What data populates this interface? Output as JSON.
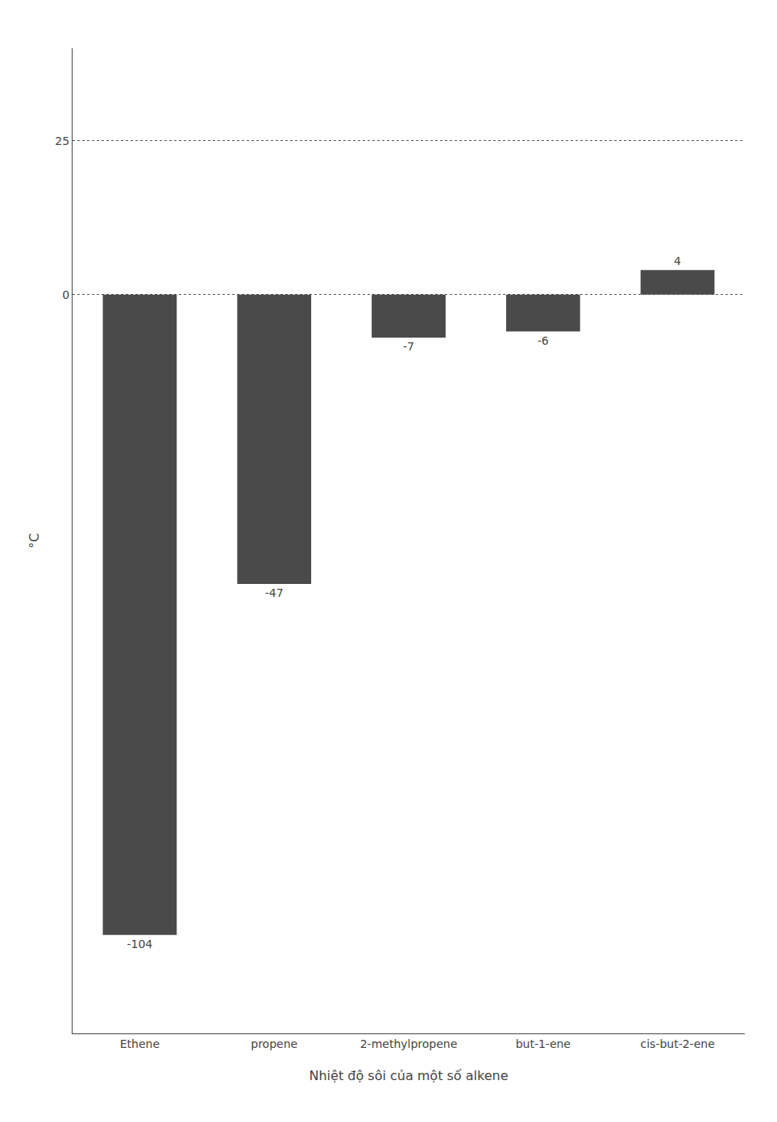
{
  "chart_data": {
    "type": "bar",
    "xlabel": "Nhiệt độ sôi của một số alkene",
    "ylabel": "°C",
    "categories": [
      "Ethene",
      "propene",
      "2-methylpropene",
      "but-1-ene",
      "cis-but-2-ene"
    ],
    "values": [
      -104,
      -47,
      -7,
      -6,
      4
    ],
    "color": "#4a4a4a",
    "ylim": [
      -120,
      40
    ],
    "yticks": [
      0,
      25
    ],
    "grid": true,
    "data_labels": true
  }
}
